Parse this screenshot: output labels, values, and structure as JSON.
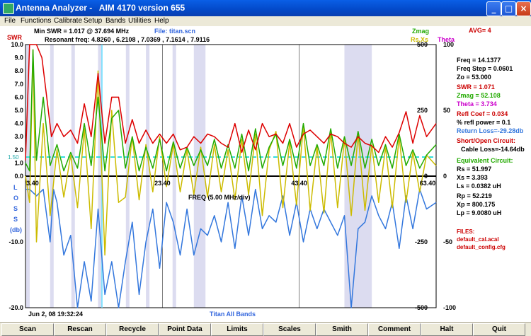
{
  "window": {
    "title": "Antenna Analyzer -   AIM 4170 version 655",
    "minimize": "_",
    "maximize": "□",
    "close": "×"
  },
  "menu": [
    "File",
    "Functions",
    "Calibrate",
    "Setup",
    "Bands",
    "Utilities",
    "Help"
  ],
  "header": {
    "min_swr": "Min SWR =  1.017 @  37.694 MHz",
    "file": "File: titan.scn",
    "resonant": "Resonant freq:  4.8260  , 6.2108  , 7.0369  , 7.1614  , 7.9116",
    "swr_label": "SWR",
    "zmag_label": "Zmag",
    "rsxs_label": "Rs,Xs",
    "theta_label": "Theta",
    "avg": "AVG=  4",
    "freq_axis": "FREQ (5.00 MHz/div)",
    "date": "Jun 2, 08  19:32:24",
    "band": "Titan All Bands",
    "loss_letters": [
      "L",
      "O",
      "S",
      "S",
      "(db)"
    ],
    "swr_ref": "1.50"
  },
  "chart_data": {
    "type": "line",
    "x_range": [
      3.4,
      63.4
    ],
    "x_ticks": [
      "3.40",
      "23.40",
      "43.40",
      "63.40"
    ],
    "swr_ticks": [
      "10.0",
      "9.0",
      "8.0",
      "7.0",
      "6.0",
      "5.0",
      "4.0",
      "3.0",
      "2.0",
      "1.0",
      "0.0"
    ],
    "loss_ticks": [
      "-10.0",
      "-20.0"
    ],
    "z_ticks": [
      "500",
      "250",
      "0",
      "-250",
      "-500"
    ],
    "theta_ticks": [
      "100",
      "50",
      "0",
      "-50",
      "-100"
    ],
    "swr_reference": 1.5,
    "shaded_bands": [
      [
        3.5,
        4.0
      ],
      [
        7.0,
        7.3
      ],
      [
        10.1,
        10.15
      ],
      [
        14.0,
        14.35
      ],
      [
        18.07,
        18.17
      ],
      [
        21.0,
        21.45
      ],
      [
        24.89,
        24.99
      ],
      [
        28.0,
        29.7
      ],
      [
        50.0,
        54.0
      ]
    ],
    "series": [
      {
        "name": "SWR",
        "color": "#dd0000",
        "x": [
          3.4,
          4,
          4.5,
          5,
          5.8,
          6.5,
          7.2,
          8,
          9,
          10,
          11,
          12,
          13,
          14,
          15,
          16,
          17,
          18,
          19,
          20,
          21,
          22,
          23,
          24,
          25,
          26,
          27,
          28,
          29,
          30,
          31,
          32,
          33,
          34,
          35,
          36,
          37,
          38,
          39,
          40,
          41,
          42,
          43,
          44,
          45,
          46,
          47,
          48,
          49,
          50,
          51,
          52,
          53,
          54,
          55,
          56,
          57,
          58,
          59,
          60,
          61,
          62,
          63.4
        ],
        "values": [
          1.2,
          10,
          10,
          10,
          9,
          6,
          3,
          4,
          3,
          3.5,
          2.5,
          5.5,
          3,
          7.8,
          2.5,
          6,
          6,
          2.5,
          4.3,
          2.5,
          3.5,
          2.5,
          3.2,
          2.5,
          3.2,
          2,
          2.2,
          3,
          2.5,
          3.2,
          3,
          2.5,
          2.2,
          4,
          1.8,
          3.5,
          2,
          4,
          3,
          3.2,
          2.5,
          4,
          2.2,
          3.2,
          3.5,
          3,
          2.5,
          3.2,
          3,
          2.5,
          2.2,
          3,
          2.5,
          2.3,
          1.8,
          3,
          2.2,
          3.3,
          4.9,
          2.5,
          4.6,
          3,
          4
        ]
      },
      {
        "name": "Zmag",
        "color": "#22aa00",
        "x": [
          3.4,
          4,
          4.5,
          5,
          6,
          7,
          8,
          9,
          10,
          11,
          12,
          13,
          14,
          15,
          16,
          17,
          18,
          19,
          20,
          21,
          22,
          23,
          24,
          25,
          26,
          27,
          28,
          29,
          30,
          31,
          32,
          33,
          34,
          35,
          36,
          37,
          38,
          39,
          40,
          41,
          42,
          43,
          44,
          45,
          46,
          47,
          48,
          49,
          50,
          51,
          52,
          53,
          54,
          55,
          56,
          57,
          58,
          59,
          60,
          61,
          62,
          63.4
        ],
        "values": [
          50,
          20,
          480,
          60,
          300,
          40,
          120,
          20,
          90,
          30,
          200,
          40,
          300,
          20,
          220,
          250,
          30,
          150,
          20,
          110,
          30,
          140,
          20,
          130,
          30,
          110,
          40,
          100,
          40,
          140,
          30,
          120,
          30,
          160,
          20,
          180,
          30,
          110,
          160,
          40,
          140,
          30,
          200,
          40,
          120,
          40,
          180,
          30,
          150,
          40,
          170,
          30,
          140,
          40,
          120,
          30,
          160,
          40,
          100,
          30,
          80,
          120
        ]
      },
      {
        "name": "Rs,Xs",
        "color": "#ccbb00",
        "x": [
          3.4,
          4,
          4.5,
          5,
          6,
          7,
          8,
          9,
          10,
          11,
          12,
          13,
          14,
          15,
          16,
          17,
          18,
          19,
          20,
          21,
          22,
          23,
          24,
          25,
          26,
          27,
          28,
          29,
          30,
          31,
          32,
          33,
          34,
          35,
          36,
          37,
          38,
          39,
          40,
          41,
          42,
          43,
          44,
          45,
          46,
          47,
          48,
          49,
          50,
          51,
          52,
          53,
          54,
          55,
          56,
          57,
          58,
          59,
          60,
          61,
          62,
          63.4
        ],
        "values": [
          0,
          -100,
          480,
          -250,
          200,
          -150,
          100,
          -80,
          80,
          -120,
          180,
          -200,
          400,
          -300,
          250,
          -100,
          -80,
          150,
          -90,
          120,
          -60,
          150,
          -40,
          120,
          -60,
          100,
          -70,
          110,
          -80,
          120,
          -60,
          100,
          -90,
          140,
          -70,
          160,
          -150,
          100,
          170,
          -120,
          130,
          -110,
          190,
          -130,
          110,
          -140,
          170,
          -120,
          140,
          -150,
          160,
          -130,
          120,
          -100,
          110,
          -120,
          150,
          -100,
          90,
          -60,
          80,
          40
        ]
      },
      {
        "name": "Return Loss",
        "color": "#3377dd",
        "x": [
          3.4,
          4,
          5,
          6,
          7,
          7.5,
          8,
          9,
          10,
          11,
          12,
          13,
          14,
          15,
          16,
          17,
          18,
          19,
          20,
          21,
          22,
          23,
          24,
          25,
          26,
          27,
          28,
          29,
          30,
          31,
          32,
          33,
          34,
          35,
          36,
          37,
          38,
          39,
          40,
          41,
          42,
          43,
          44,
          45,
          46,
          47,
          48,
          49,
          50,
          51,
          52,
          53,
          54,
          55,
          56,
          57,
          58,
          59,
          60,
          61,
          62,
          63.4
        ],
        "values": [
          -2,
          -2,
          -3,
          -2,
          -10,
          -2,
          -4,
          -12,
          -9,
          -20,
          -13,
          -19,
          -5,
          -18,
          -13,
          -20,
          -13,
          -7,
          -18,
          -10,
          -5,
          -14,
          -4,
          -7,
          -12,
          -5,
          -12,
          -8,
          -9,
          -6,
          -10,
          -4,
          -11,
          -3,
          -9,
          -2,
          -8,
          -6,
          -7,
          -3,
          -9,
          -4,
          -10,
          -5,
          -8,
          -5,
          -7,
          -9,
          -6,
          -20,
          -8,
          -7,
          -3,
          -6,
          -8,
          -4,
          -11,
          -3,
          -8,
          -2,
          -5,
          -4
        ]
      }
    ]
  },
  "readout": {
    "freq": "Freq = 14.1377",
    "freq_step": "Freq Step =  0.0601",
    "zo": "Zo =  53.000",
    "swr": "SWR =   1.071",
    "zmag": "Zmag =  52.108",
    "theta": "Theta =   3.734",
    "refl_coef": "Refl Coef   = 0.034",
    "refl_power": "% refl power =  0.1",
    "return_loss": "Return Loss=-29.28db",
    "short_open": "Short/Open Circuit:",
    "cable_loss": "Cable Loss=-14.64db",
    "equiv": "Equivalent Circuit:",
    "rs": "Rs =   51.997",
    "xs": "Xs =    3.393",
    "ls": "Ls =    0.0382  uH",
    "rp": "Rp =   52.219",
    "xp": "Xp =  800.175",
    "lp": "Lp =    9.0080  uH",
    "files": "FILES:",
    "cal_file": "default_cal.acal",
    "cfg_file": "default_config.cfg"
  },
  "colors": {
    "swr": "#dd0000",
    "zmag": "#22aa00",
    "rsxs": "#ccbb00",
    "theta": "#cc00cc",
    "loss": "#3377dd",
    "band": "#dcdcf0",
    "ref": "#33dddd"
  },
  "buttons": [
    "Scan",
    "Rescan",
    "Recycle",
    "Point Data",
    "Limits",
    "Scales",
    "Smith",
    "Comment",
    "Halt",
    "Quit"
  ]
}
